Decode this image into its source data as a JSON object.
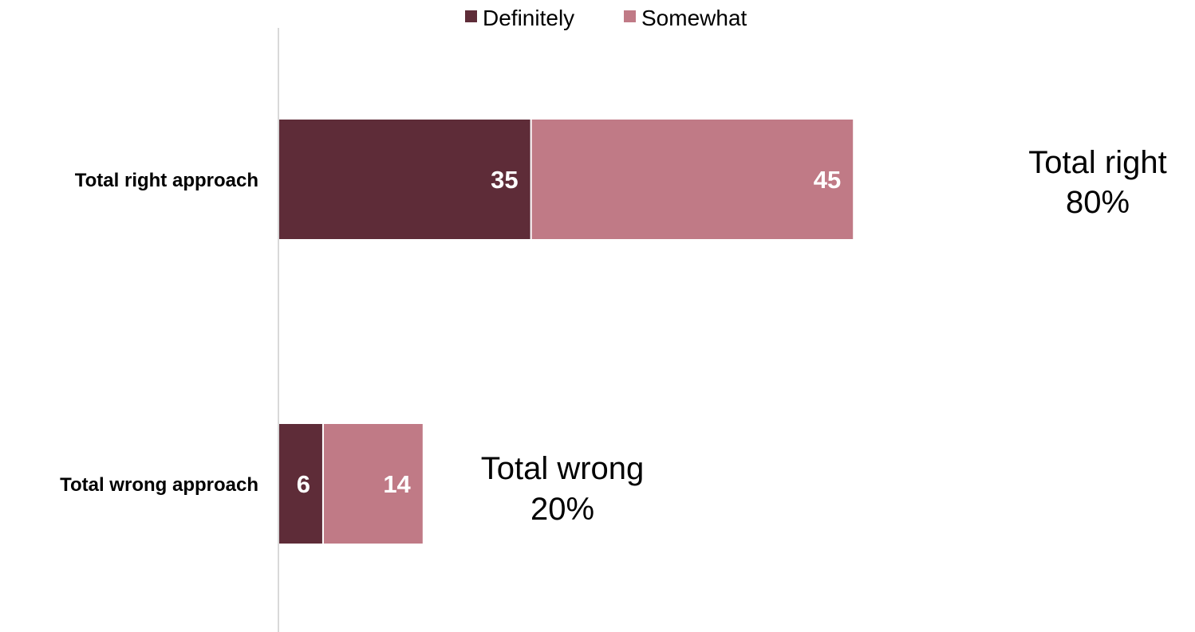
{
  "chart_data": {
    "type": "bar",
    "orientation": "horizontal",
    "stacked": true,
    "categories": [
      "Total right approach",
      "Total wrong approach"
    ],
    "series": [
      {
        "name": "Definitely",
        "values": [
          35,
          6
        ],
        "color": "#5e2c38"
      },
      {
        "name": "Somewhat",
        "values": [
          45,
          14
        ],
        "color": "#c07a86"
      }
    ],
    "totals": [
      {
        "line1": "Total right",
        "line2": "80%"
      },
      {
        "line1": "Total wrong",
        "line2": "20%"
      }
    ],
    "xlim": [
      0,
      100
    ],
    "grid": false,
    "legend_position": "top-center",
    "axis_color": "#d9d9d9"
  }
}
